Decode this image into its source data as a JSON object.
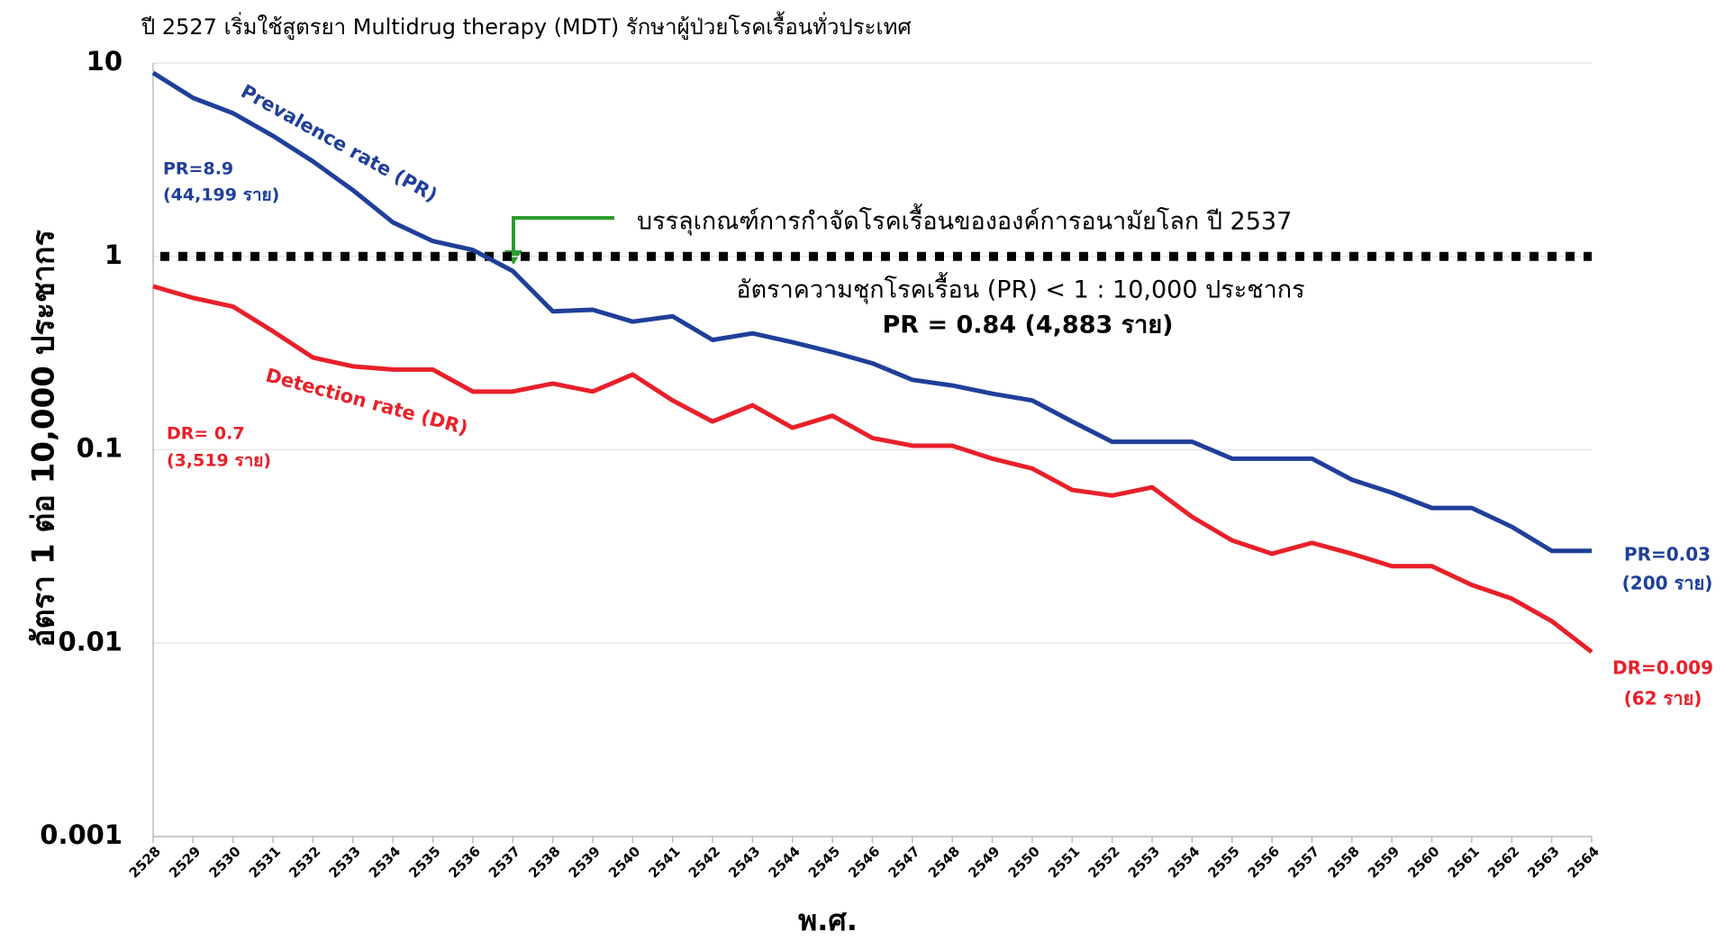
{
  "chart_data": {
    "type": "line",
    "title": "ปี 2527 เริ่มใช้สูตรยา Multidrug therapy (MDT) รักษาผู้ป่วยโรคเรื้อนทั่วประเทศ",
    "ylabel": "อัตรา 1 ต่อ 10,000 ประชากร",
    "xlabel": "พ.ศ.",
    "categories": [
      2528,
      2529,
      2530,
      2531,
      2532,
      2533,
      2534,
      2535,
      2536,
      2537,
      2538,
      2539,
      2540,
      2541,
      2542,
      2543,
      2544,
      2545,
      2546,
      2547,
      2548,
      2549,
      2550,
      2551,
      2552,
      2553,
      2554,
      2555,
      2556,
      2557,
      2558,
      2559,
      2560,
      2561,
      2562,
      2563,
      2564
    ],
    "series": [
      {
        "name": "Prevalence rate (PR)",
        "color": "#1f3f99",
        "values": [
          8.9,
          6.6,
          5.5,
          4.2,
          3.1,
          2.2,
          1.5,
          1.2,
          1.08,
          0.84,
          0.52,
          0.53,
          0.46,
          0.49,
          0.37,
          0.4,
          0.36,
          0.32,
          0.28,
          0.23,
          0.215,
          0.195,
          0.18,
          0.14,
          0.11,
          0.11,
          0.11,
          0.09,
          0.09,
          0.09,
          0.07,
          0.06,
          0.05,
          0.05,
          0.04,
          0.03,
          0.03
        ]
      },
      {
        "name": "Detection rate (DR)",
        "color": "#e8202a",
        "values": [
          0.7,
          0.61,
          0.55,
          0.41,
          0.3,
          0.27,
          0.26,
          0.26,
          0.2,
          0.2,
          0.22,
          0.2,
          0.245,
          0.18,
          0.14,
          0.17,
          0.13,
          0.15,
          0.115,
          0.105,
          0.105,
          0.09,
          0.08,
          0.062,
          0.058,
          0.064,
          0.045,
          0.034,
          0.029,
          0.033,
          0.029,
          0.025,
          0.025,
          0.02,
          0.017,
          0.013,
          0.009
        ]
      }
    ],
    "ylim": [
      0.001,
      10
    ],
    "yticks": [
      0.001,
      0.01,
      0.1,
      1,
      10
    ],
    "log_y": true,
    "grid": true,
    "reference_line": 1,
    "annotations": [
      "PR=8.9",
      "(44,199 ราย)",
      "DR= 0.7",
      "(3,519 ราย)",
      "บรรลุเกณฑ์การกำจัดโรคเรื้อนขององค์การอนามัยโลก ปี 2537",
      "อัตราความชุกโรคเรื้อน (PR) < 1 : 10,000 ประชากร",
      "PR = 0.84 (4,883 ราย)",
      "PR=0.03",
      "(200 ราย)",
      "DR=0.009",
      "(62 ราย)"
    ]
  }
}
